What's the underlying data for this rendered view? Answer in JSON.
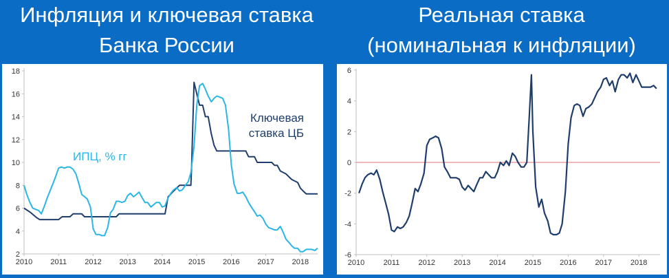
{
  "header": {
    "left_title_line1": "Инфляция и ключевая ставка",
    "left_title_line2": "Банка России",
    "right_title_line1": "Реальная ставка",
    "right_title_line2": "(номинальная к инфляции)"
  },
  "colors": {
    "background": "#0a6cc4",
    "cpi_line": "#29b6e6",
    "key_rate_line": "#1f3d6b",
    "real_rate_line": "#1f3d6b",
    "zero_line": "#e07070",
    "axis": "#bfbfbf"
  },
  "chart_data": [
    {
      "type": "line",
      "title": "Инфляция и ключевая ставка Банка России",
      "xlabel": "",
      "ylabel": "",
      "xlim": [
        2010,
        2018.5
      ],
      "ylim": [
        2,
        18
      ],
      "x_ticks": [
        "2010",
        "2011",
        "2012",
        "2013",
        "2014",
        "2015",
        "2016",
        "2017",
        "2018"
      ],
      "y_ticks": [
        "2",
        "4",
        "6",
        "8",
        "10",
        "12",
        "14",
        "16",
        "18"
      ],
      "grid": false,
      "annotations": [
        {
          "text": "ИПЦ, % гг",
          "series": "cpi"
        },
        {
          "text_line1": "Ключевая",
          "text_line2": "ставка ЦБ",
          "series": "key_rate"
        }
      ],
      "series": [
        {
          "id": "cpi",
          "points": [
            [
              2010.0,
              8.0
            ],
            [
              2010.08,
              7.2
            ],
            [
              2010.17,
              6.5
            ],
            [
              2010.25,
              6.0
            ],
            [
              2010.33,
              5.9
            ],
            [
              2010.42,
              5.8
            ],
            [
              2010.5,
              5.5
            ],
            [
              2010.58,
              6.1
            ],
            [
              2010.67,
              6.9
            ],
            [
              2010.75,
              7.5
            ],
            [
              2010.83,
              8.1
            ],
            [
              2010.92,
              8.8
            ],
            [
              2011.0,
              9.5
            ],
            [
              2011.08,
              9.6
            ],
            [
              2011.17,
              9.5
            ],
            [
              2011.25,
              9.6
            ],
            [
              2011.33,
              9.6
            ],
            [
              2011.42,
              9.4
            ],
            [
              2011.5,
              9.0
            ],
            [
              2011.58,
              8.2
            ],
            [
              2011.67,
              7.2
            ],
            [
              2011.75,
              7.0
            ],
            [
              2011.83,
              6.8
            ],
            [
              2011.92,
              6.1
            ],
            [
              2012.0,
              4.2
            ],
            [
              2012.08,
              3.7
            ],
            [
              2012.17,
              3.7
            ],
            [
              2012.25,
              3.6
            ],
            [
              2012.33,
              3.6
            ],
            [
              2012.42,
              4.3
            ],
            [
              2012.5,
              5.6
            ],
            [
              2012.58,
              5.9
            ],
            [
              2012.67,
              6.6
            ],
            [
              2012.75,
              6.6
            ],
            [
              2012.83,
              6.5
            ],
            [
              2012.92,
              6.6
            ],
            [
              2013.0,
              7.1
            ],
            [
              2013.08,
              7.3
            ],
            [
              2013.17,
              7.0
            ],
            [
              2013.25,
              7.2
            ],
            [
              2013.33,
              7.4
            ],
            [
              2013.42,
              6.9
            ],
            [
              2013.5,
              6.5
            ],
            [
              2013.58,
              6.5
            ],
            [
              2013.67,
              6.1
            ],
            [
              2013.75,
              6.3
            ],
            [
              2013.83,
              6.5
            ],
            [
              2013.92,
              6.5
            ],
            [
              2014.0,
              6.1
            ],
            [
              2014.08,
              6.2
            ],
            [
              2014.17,
              6.9
            ],
            [
              2014.25,
              7.3
            ],
            [
              2014.33,
              7.6
            ],
            [
              2014.42,
              7.8
            ],
            [
              2014.5,
              7.5
            ],
            [
              2014.58,
              7.6
            ],
            [
              2014.67,
              8.0
            ],
            [
              2014.75,
              8.3
            ],
            [
              2014.83,
              9.1
            ],
            [
              2014.92,
              11.4
            ],
            [
              2015.0,
              15.0
            ],
            [
              2015.08,
              16.7
            ],
            [
              2015.17,
              16.9
            ],
            [
              2015.25,
              16.4
            ],
            [
              2015.33,
              15.8
            ],
            [
              2015.42,
              15.3
            ],
            [
              2015.5,
              15.6
            ],
            [
              2015.58,
              15.8
            ],
            [
              2015.67,
              15.7
            ],
            [
              2015.75,
              15.6
            ],
            [
              2015.83,
              15.0
            ],
            [
              2015.92,
              12.9
            ],
            [
              2016.0,
              9.8
            ],
            [
              2016.08,
              8.1
            ],
            [
              2016.17,
              7.3
            ],
            [
              2016.25,
              7.3
            ],
            [
              2016.33,
              7.4
            ],
            [
              2016.42,
              7.0
            ],
            [
              2016.5,
              6.5
            ],
            [
              2016.58,
              6.1
            ],
            [
              2016.67,
              5.7
            ],
            [
              2016.75,
              5.3
            ],
            [
              2016.83,
              5.4
            ],
            [
              2016.92,
              5.1
            ],
            [
              2017.0,
              4.6
            ],
            [
              2017.08,
              4.3
            ],
            [
              2017.17,
              4.2
            ],
            [
              2017.25,
              4.1
            ],
            [
              2017.33,
              4.1
            ],
            [
              2017.42,
              4.4
            ],
            [
              2017.5,
              3.9
            ],
            [
              2017.58,
              3.3
            ],
            [
              2017.67,
              3.0
            ],
            [
              2017.75,
              2.7
            ],
            [
              2017.83,
              2.5
            ],
            [
              2017.92,
              2.5
            ],
            [
              2018.0,
              2.2
            ],
            [
              2018.08,
              2.2
            ],
            [
              2018.17,
              2.4
            ],
            [
              2018.25,
              2.4
            ],
            [
              2018.33,
              2.4
            ],
            [
              2018.42,
              2.3
            ],
            [
              2018.5,
              2.5
            ]
          ]
        },
        {
          "id": "key_rate",
          "points": [
            [
              2010.0,
              6.0
            ],
            [
              2010.2,
              5.6
            ],
            [
              2010.35,
              5.2
            ],
            [
              2010.45,
              5.0
            ],
            [
              2011.0,
              5.0
            ],
            [
              2011.1,
              5.25
            ],
            [
              2011.33,
              5.25
            ],
            [
              2011.42,
              5.5
            ],
            [
              2011.67,
              5.5
            ],
            [
              2011.75,
              5.25
            ],
            [
              2012.67,
              5.25
            ],
            [
              2012.75,
              5.5
            ],
            [
              2014.0,
              5.5
            ],
            [
              2014.08,
              5.5
            ],
            [
              2014.17,
              7.0
            ],
            [
              2014.33,
              7.5
            ],
            [
              2014.5,
              8.0
            ],
            [
              2014.83,
              8.0
            ],
            [
              2014.85,
              9.5
            ],
            [
              2014.92,
              17.0
            ],
            [
              2015.08,
              15.0
            ],
            [
              2015.17,
              15.0
            ],
            [
              2015.25,
              14.0
            ],
            [
              2015.33,
              14.0
            ],
            [
              2015.42,
              12.5
            ],
            [
              2015.5,
              11.5
            ],
            [
              2015.58,
              11.0
            ],
            [
              2016.42,
              11.0
            ],
            [
              2016.5,
              10.5
            ],
            [
              2016.67,
              10.5
            ],
            [
              2016.75,
              10.0
            ],
            [
              2017.17,
              10.0
            ],
            [
              2017.25,
              9.75
            ],
            [
              2017.33,
              9.75
            ],
            [
              2017.42,
              9.25
            ],
            [
              2017.58,
              9.0
            ],
            [
              2017.75,
              8.5
            ],
            [
              2017.92,
              8.25
            ],
            [
              2018.0,
              7.75
            ],
            [
              2018.08,
              7.5
            ],
            [
              2018.17,
              7.25
            ],
            [
              2018.5,
              7.25
            ]
          ]
        }
      ]
    },
    {
      "type": "line",
      "title": "Реальная ставка (номинальная к инфляции)",
      "xlabel": "",
      "ylabel": "",
      "xlim": [
        2010,
        2018.6
      ],
      "ylim": [
        -6,
        6
      ],
      "x_ticks": [
        "2010",
        "2011",
        "2012",
        "2013",
        "2014",
        "2015",
        "2016",
        "2017",
        "2018"
      ],
      "y_ticks": [
        "-6",
        "-4",
        "-2",
        "0",
        "2",
        "4",
        "6"
      ],
      "reference_line": 0,
      "grid": false,
      "series": [
        {
          "id": "real_rate",
          "points": [
            [
              2010.08,
              -2.0
            ],
            [
              2010.17,
              -1.4
            ],
            [
              2010.25,
              -1.0
            ],
            [
              2010.33,
              -0.8
            ],
            [
              2010.42,
              -0.7
            ],
            [
              2010.5,
              -0.8
            ],
            [
              2010.58,
              -0.5
            ],
            [
              2010.67,
              -1.1
            ],
            [
              2010.75,
              -1.9
            ],
            [
              2010.83,
              -2.6
            ],
            [
              2010.92,
              -3.4
            ],
            [
              2011.0,
              -4.4
            ],
            [
              2011.08,
              -4.5
            ],
            [
              2011.17,
              -4.2
            ],
            [
              2011.25,
              -4.3
            ],
            [
              2011.33,
              -4.2
            ],
            [
              2011.42,
              -3.9
            ],
            [
              2011.5,
              -3.5
            ],
            [
              2011.58,
              -2.7
            ],
            [
              2011.67,
              -1.7
            ],
            [
              2011.75,
              -1.9
            ],
            [
              2011.83,
              -1.4
            ],
            [
              2011.92,
              -0.7
            ],
            [
              2012.0,
              1.1
            ],
            [
              2012.08,
              1.5
            ],
            [
              2012.17,
              1.6
            ],
            [
              2012.25,
              1.7
            ],
            [
              2012.33,
              1.6
            ],
            [
              2012.42,
              0.9
            ],
            [
              2012.5,
              -0.3
            ],
            [
              2012.58,
              -0.6
            ],
            [
              2012.67,
              -1.0
            ],
            [
              2012.75,
              -1.0
            ],
            [
              2012.83,
              -1.0
            ],
            [
              2012.92,
              -1.1
            ],
            [
              2013.0,
              -1.6
            ],
            [
              2013.08,
              -1.8
            ],
            [
              2013.17,
              -1.5
            ],
            [
              2013.25,
              -1.7
            ],
            [
              2013.33,
              -1.9
            ],
            [
              2013.42,
              -1.4
            ],
            [
              2013.5,
              -1.0
            ],
            [
              2013.58,
              -1.0
            ],
            [
              2013.67,
              -0.6
            ],
            [
              2013.75,
              -0.8
            ],
            [
              2013.83,
              -1.0
            ],
            [
              2013.92,
              -1.0
            ],
            [
              2014.0,
              -0.6
            ],
            [
              2014.08,
              0.0
            ],
            [
              2014.17,
              -0.2
            ],
            [
              2014.25,
              0.1
            ],
            [
              2014.33,
              -0.2
            ],
            [
              2014.42,
              0.6
            ],
            [
              2014.5,
              0.4
            ],
            [
              2014.58,
              0.0
            ],
            [
              2014.67,
              -0.3
            ],
            [
              2014.75,
              -0.3
            ],
            [
              2014.83,
              0.0
            ],
            [
              2014.9,
              3.0
            ],
            [
              2014.96,
              5.7
            ],
            [
              2015.0,
              2.0
            ],
            [
              2015.08,
              -1.6
            ],
            [
              2015.17,
              -2.9
            ],
            [
              2015.25,
              -2.4
            ],
            [
              2015.33,
              -3.3
            ],
            [
              2015.42,
              -3.8
            ],
            [
              2015.5,
              -4.6
            ],
            [
              2015.58,
              -4.7
            ],
            [
              2015.67,
              -4.7
            ],
            [
              2015.75,
              -4.6
            ],
            [
              2015.83,
              -4.0
            ],
            [
              2015.92,
              -1.9
            ],
            [
              2016.0,
              1.2
            ],
            [
              2016.08,
              2.9
            ],
            [
              2016.17,
              3.7
            ],
            [
              2016.25,
              3.8
            ],
            [
              2016.33,
              3.7
            ],
            [
              2016.42,
              3.0
            ],
            [
              2016.5,
              3.5
            ],
            [
              2016.58,
              3.6
            ],
            [
              2016.67,
              3.8
            ],
            [
              2016.75,
              4.2
            ],
            [
              2016.83,
              4.6
            ],
            [
              2016.92,
              4.9
            ],
            [
              2017.0,
              5.4
            ],
            [
              2017.08,
              5.5
            ],
            [
              2017.17,
              5.0
            ],
            [
              2017.25,
              5.3
            ],
            [
              2017.33,
              4.6
            ],
            [
              2017.42,
              5.4
            ],
            [
              2017.5,
              5.7
            ],
            [
              2017.58,
              5.7
            ],
            [
              2017.67,
              5.5
            ],
            [
              2017.75,
              5.8
            ],
            [
              2017.83,
              5.2
            ],
            [
              2017.92,
              5.7
            ],
            [
              2018.0,
              5.3
            ],
            [
              2018.08,
              4.9
            ],
            [
              2018.17,
              4.9
            ],
            [
              2018.25,
              4.9
            ],
            [
              2018.33,
              4.9
            ],
            [
              2018.42,
              5.0
            ],
            [
              2018.5,
              4.8
            ]
          ]
        }
      ]
    }
  ]
}
